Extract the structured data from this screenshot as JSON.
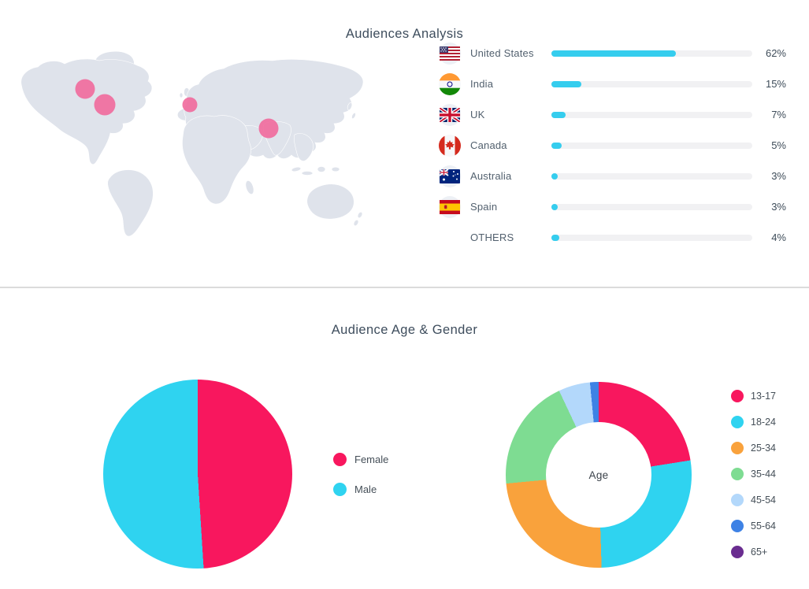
{
  "audiences": {
    "title": "Audiences Analysis",
    "countries": [
      {
        "name": "United States",
        "percent": 62,
        "percent_label": "62%",
        "flag": "us"
      },
      {
        "name": "India",
        "percent": 15,
        "percent_label": "15%",
        "flag": "in"
      },
      {
        "name": "UK",
        "percent": 7,
        "percent_label": "7%",
        "flag": "uk"
      },
      {
        "name": "Canada",
        "percent": 5,
        "percent_label": "5%",
        "flag": "ca"
      },
      {
        "name": "Australia",
        "percent": 3,
        "percent_label": "3%",
        "flag": "au"
      },
      {
        "name": "Spain",
        "percent": 3,
        "percent_label": "3%",
        "flag": "es"
      },
      {
        "name": "OTHERS",
        "percent": 4,
        "percent_label": "4%",
        "flag": null
      }
    ],
    "map": {
      "land_color": "#DFE3EB",
      "bubble_color": "#F1699C",
      "bubbles": [
        {
          "label": "Canada",
          "x": 88,
          "y": 58,
          "r": 12.5
        },
        {
          "label": "United States",
          "x": 113,
          "y": 78,
          "r": 13.5
        },
        {
          "label": "Spain",
          "x": 221,
          "y": 78,
          "r": 9.5
        },
        {
          "label": "India",
          "x": 321,
          "y": 108,
          "r": 12.5
        }
      ]
    }
  },
  "age_gender": {
    "title": "Audience Age & Gender",
    "donut_center_label": "Age",
    "gender": {
      "labels": [
        "Female",
        "Male"
      ],
      "values": [
        49,
        51
      ],
      "colors": [
        "#F8175E",
        "#2FD3F0"
      ]
    },
    "age": {
      "labels": [
        "13-17",
        "18-24",
        "25-34",
        "35-44",
        "45-54",
        "55-64",
        "65+"
      ],
      "values": [
        22.5,
        27,
        24,
        19.5,
        5.5,
        1.5,
        0
      ],
      "colors": [
        "#F8175E",
        "#2FD3F0",
        "#F9A23C",
        "#7EDC92",
        "#B3D8FB",
        "#3E82E5",
        "#6A2D90"
      ]
    }
  },
  "colors": {
    "bar_fill": "#35CDEE",
    "bar_track": "#F1F1F3",
    "title_text": "#3E4D5D",
    "divider": "#DBDBDB"
  },
  "chart_data": [
    {
      "type": "bar",
      "orientation": "horizontal",
      "title": "Audiences Analysis",
      "categories": [
        "United States",
        "India",
        "UK",
        "Canada",
        "Australia",
        "Spain",
        "OTHERS"
      ],
      "values": [
        62,
        15,
        7,
        5,
        3,
        3,
        4
      ],
      "value_labels": [
        "62%",
        "15%",
        "7%",
        "5%",
        "3%",
        "3%",
        "4%"
      ],
      "unit": "%",
      "xlim": [
        0,
        100
      ],
      "bar_color": "#35CDEE",
      "grid": false,
      "legend_position": "none"
    },
    {
      "type": "scatter",
      "subtype": "world-map-bubbles",
      "title": "",
      "points": [
        {
          "label": "Canada",
          "size": 12.5
        },
        {
          "label": "United States",
          "size": 13.5
        },
        {
          "label": "Spain",
          "size": 9.5
        },
        {
          "label": "India",
          "size": 12.5
        }
      ],
      "marker_color": "#F1699C"
    },
    {
      "type": "pie",
      "title": "Audience Age & Gender",
      "categories": [
        "Female",
        "Male"
      ],
      "values": [
        49,
        51
      ],
      "colors": [
        "#F8175E",
        "#2FD3F0"
      ],
      "start_angle_deg": 0,
      "direction": "clockwise",
      "legend_position": "right"
    },
    {
      "type": "pie",
      "subtype": "donut",
      "title": "Age",
      "center_label": "Age",
      "categories": [
        "13-17",
        "18-24",
        "25-34",
        "35-44",
        "45-54",
        "55-64",
        "65+"
      ],
      "values": [
        22.5,
        27,
        24,
        19.5,
        5.5,
        1.5,
        0
      ],
      "colors": [
        "#F8175E",
        "#2FD3F0",
        "#F9A23C",
        "#7EDC92",
        "#B3D8FB",
        "#3E82E5",
        "#6A2D90"
      ],
      "inner_radius_ratio": 0.57,
      "legend_position": "right"
    }
  ]
}
